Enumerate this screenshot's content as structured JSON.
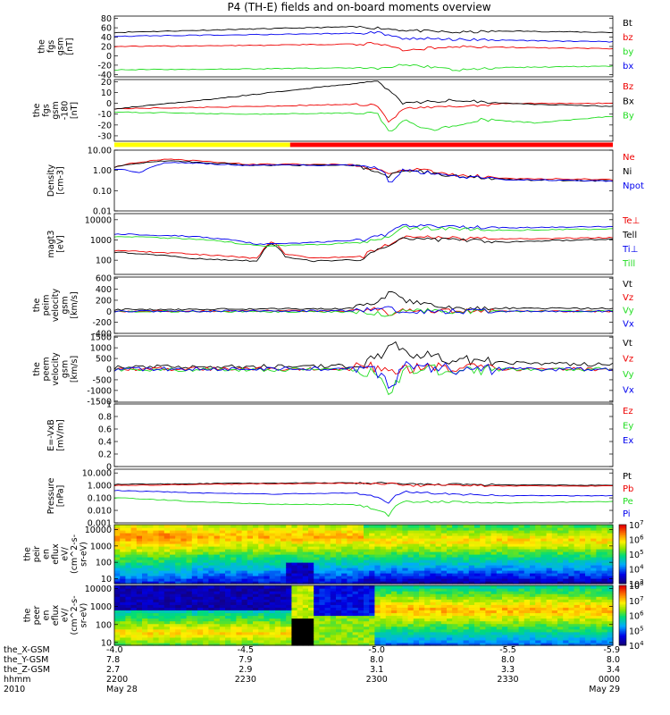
{
  "title": "P4 (TH-E) fields and on-board moments overview",
  "status_bar": {
    "segments": [
      {
        "color": "#ffff00",
        "until_x": -4.67
      },
      {
        "color": "#ff0000",
        "until_x": -5.9
      }
    ]
  },
  "colors": {
    "black": "#000000",
    "red": "#ee0000",
    "green": "#22dd22",
    "blue": "#0000ee"
  },
  "chart_data": [
    {
      "id": "p1",
      "type": "line",
      "ylabel": [
        "the",
        "fgs",
        "gsm",
        "[nT]"
      ],
      "ylim": [
        -45,
        85
      ],
      "yticks": [
        80,
        60,
        40,
        20,
        0,
        -20,
        -40
      ],
      "series": [
        {
          "name": "Bt",
          "color": "#000000",
          "x": [
            -4.0,
            -4.5,
            -4.9,
            -5.0,
            -5.1,
            -5.3,
            -5.5,
            -5.9
          ],
          "y": [
            50,
            57,
            62,
            60,
            55,
            50,
            53,
            50
          ]
        },
        {
          "name": "bz",
          "color": "#ee0000",
          "x": [
            -4.0,
            -4.5,
            -4.9,
            -5.0,
            -5.1,
            -5.3,
            -5.5,
            -5.9
          ],
          "y": [
            20,
            22,
            25,
            26,
            12,
            20,
            18,
            15
          ]
        },
        {
          "name": "by",
          "color": "#22dd22",
          "x": [
            -4.0,
            -4.5,
            -4.9,
            -5.0,
            -5.1,
            -5.3,
            -5.5,
            -5.9
          ],
          "y": [
            -30,
            -28,
            -26,
            -28,
            -18,
            -30,
            -25,
            -22
          ]
        },
        {
          "name": "bx",
          "color": "#0000ee",
          "x": [
            -4.0,
            -4.5,
            -4.9,
            -5.0,
            -5.1,
            -5.3,
            -5.5,
            -5.9
          ],
          "y": [
            42,
            45,
            48,
            50,
            38,
            35,
            33,
            30
          ]
        }
      ]
    },
    {
      "id": "p2",
      "type": "line",
      "ylabel": [
        "the",
        "fgs",
        "gsm",
        "-180",
        "[nT]"
      ],
      "ylim": [
        -35,
        22
      ],
      "yticks": [
        20,
        10,
        0,
        -10,
        -20,
        -30
      ],
      "series": [
        {
          "name": "Bz",
          "color": "#ee0000",
          "x": [
            -4.0,
            -4.5,
            -4.9,
            -5.0,
            -5.05,
            -5.1,
            -5.3,
            -5.5,
            -5.9
          ],
          "y": [
            -5,
            -3,
            -1,
            -1,
            -18,
            -5,
            -3,
            0,
            0
          ]
        },
        {
          "name": "Bx",
          "color": "#000000",
          "x": [
            -4.0,
            -4.3,
            -4.6,
            -4.9,
            -5.0,
            -5.05,
            -5.1,
            -5.3,
            -5.5,
            -5.9
          ],
          "y": [
            -5,
            2,
            10,
            18,
            20,
            12,
            0,
            3,
            0,
            -3
          ]
        },
        {
          "name": "By",
          "color": "#22dd22",
          "x": [
            -4.0,
            -4.5,
            -4.9,
            -5.0,
            -5.05,
            -5.1,
            -5.2,
            -5.4,
            -5.6,
            -5.9
          ],
          "y": [
            -8,
            -10,
            -9,
            -8,
            -28,
            -15,
            -25,
            -15,
            -18,
            -12
          ]
        }
      ]
    },
    {
      "id": "p3",
      "type": "line",
      "log": true,
      "ylabel": [
        "Density",
        "[cm-3]"
      ],
      "ylim": [
        0.01,
        10
      ],
      "yticks": [
        0.01,
        0.1,
        1.0,
        10.0
      ],
      "ytick_labels": [
        "0.01",
        "0.10",
        "1.00",
        "10.00"
      ],
      "series": [
        {
          "name": "Ne",
          "color": "#ee0000",
          "x": [
            -4.0,
            -4.2,
            -4.5,
            -4.9,
            -5.05,
            -5.1,
            -5.3,
            -5.5,
            -5.9
          ],
          "y": [
            1.5,
            3.5,
            2.0,
            2.0,
            0.6,
            1.2,
            0.6,
            0.4,
            0.35
          ]
        },
        {
          "name": "Ni",
          "color": "#000000",
          "x": [
            -4.0,
            -4.2,
            -4.5,
            -4.9,
            -5.05,
            -5.1,
            -5.3,
            -5.5,
            -5.9
          ],
          "y": [
            1.5,
            3.0,
            1.8,
            1.8,
            0.5,
            1.1,
            0.5,
            0.35,
            0.3
          ]
        },
        {
          "name": "Npot",
          "color": "#0000ee",
          "x": [
            -4.0,
            -4.1,
            -4.2,
            -4.5,
            -4.9,
            -5.0,
            -5.05,
            -5.1,
            -5.3,
            -5.5,
            -5.9
          ],
          "y": [
            1.2,
            0.8,
            2.5,
            1.8,
            1.8,
            1.5,
            0.15,
            1.0,
            0.5,
            0.35,
            0.3
          ]
        }
      ]
    },
    {
      "id": "p4",
      "type": "line",
      "log": true,
      "ylabel": [
        "magt3",
        "[eV]"
      ],
      "ylim": [
        20,
        20000
      ],
      "yticks": [
        100,
        1000,
        10000
      ],
      "ytick_labels": [
        "100",
        "1000",
        "10000"
      ],
      "series": [
        {
          "name": "Te⊥",
          "color": "#ee0000",
          "x": [
            -4.0,
            -4.3,
            -4.55,
            -4.6,
            -4.65,
            -4.75,
            -4.95,
            -5.05,
            -5.1,
            -5.3,
            -5.5,
            -5.9
          ],
          "y": [
            300,
            200,
            120,
            800,
            200,
            130,
            150,
            600,
            1500,
            1200,
            1100,
            1300
          ]
        },
        {
          "name": "Tell",
          "color": "#000000",
          "x": [
            -4.0,
            -4.3,
            -4.55,
            -4.6,
            -4.65,
            -4.75,
            -4.95,
            -5.05,
            -5.1,
            -5.3,
            -5.5,
            -5.9
          ],
          "y": [
            250,
            120,
            90,
            700,
            150,
            90,
            110,
            500,
            1100,
            1000,
            800,
            1100
          ]
        },
        {
          "name": "Ti⊥",
          "color": "#0000ee",
          "x": [
            -4.0,
            -4.3,
            -4.55,
            -4.8,
            -4.95,
            -5.05,
            -5.1,
            -5.3,
            -5.5,
            -5.9
          ],
          "y": [
            2000,
            1500,
            600,
            800,
            1000,
            2000,
            5000,
            4500,
            4000,
            4500
          ]
        },
        {
          "name": "Till",
          "color": "#22dd22",
          "x": [
            -4.0,
            -4.3,
            -4.55,
            -4.8,
            -4.95,
            -5.05,
            -5.1,
            -5.3,
            -5.5,
            -5.9
          ],
          "y": [
            1500,
            1100,
            500,
            600,
            800,
            1500,
            4000,
            3500,
            3000,
            3500
          ]
        }
      ]
    },
    {
      "id": "p5",
      "type": "line",
      "ylabel": [
        "the",
        "peim",
        "velocity",
        "gsm",
        "[km/s]"
      ],
      "ylim": [
        -400,
        620
      ],
      "yticks": [
        600,
        400,
        200,
        0,
        -200,
        -400
      ],
      "series": [
        {
          "name": "Vt",
          "color": "#000000",
          "x": [
            -4.0,
            -4.9,
            -5.0,
            -5.05,
            -5.1,
            -5.2,
            -5.3,
            -5.9
          ],
          "y": [
            30,
            50,
            150,
            350,
            200,
            100,
            60,
            50
          ]
        },
        {
          "name": "Vz",
          "color": "#ee0000",
          "x": [
            -4.0,
            -4.9,
            -5.0,
            -5.05,
            -5.1,
            -5.3,
            -5.9
          ],
          "y": [
            0,
            10,
            50,
            -50,
            20,
            0,
            0
          ]
        },
        {
          "name": "Vy",
          "color": "#22dd22",
          "x": [
            -4.0,
            -4.9,
            -5.0,
            -5.05,
            -5.1,
            -5.3,
            -5.9
          ],
          "y": [
            0,
            -10,
            -40,
            -80,
            20,
            0,
            0
          ]
        },
        {
          "name": "Vx",
          "color": "#0000ee",
          "x": [
            -4.0,
            -4.9,
            -5.0,
            -5.05,
            -5.1,
            -5.3,
            -5.9
          ],
          "y": [
            0,
            10,
            40,
            60,
            -20,
            0,
            0
          ]
        }
      ]
    },
    {
      "id": "p6",
      "type": "line",
      "ylabel": [
        "the",
        "peem",
        "velocity",
        "gsm",
        "[km/s]"
      ],
      "ylim": [
        -1550,
        1550
      ],
      "yticks": [
        1500,
        1000,
        500,
        0,
        -500,
        -1000,
        -1500
      ],
      "series": [
        {
          "name": "Vt",
          "color": "#000000",
          "x": [
            -4.0,
            -4.9,
            -5.0,
            -5.05,
            -5.1,
            -5.2,
            -5.3,
            -5.5,
            -5.9
          ],
          "y": [
            100,
            150,
            400,
            1300,
            800,
            600,
            400,
            300,
            200
          ]
        },
        {
          "name": "Vz",
          "color": "#ee0000",
          "x": [
            -4.0,
            -4.9,
            -5.0,
            -5.05,
            -5.1,
            -5.3,
            -5.9
          ],
          "y": [
            0,
            20,
            100,
            -200,
            50,
            0,
            0
          ]
        },
        {
          "name": "Vy",
          "color": "#22dd22",
          "x": [
            -4.0,
            -4.9,
            -5.0,
            -5.05,
            -5.1,
            -5.3,
            -5.9
          ],
          "y": [
            0,
            -50,
            -200,
            -1000,
            -100,
            -50,
            0
          ]
        },
        {
          "name": "Vx",
          "color": "#0000ee",
          "x": [
            -4.0,
            -4.9,
            -5.0,
            -5.05,
            -5.1,
            -5.3,
            -5.9
          ],
          "y": [
            0,
            20,
            -100,
            -900,
            100,
            0,
            0
          ]
        }
      ]
    },
    {
      "id": "p7",
      "type": "line",
      "ylabel": [
        "E=-VxB",
        "[mV/m]"
      ],
      "ylim": [
        0,
        1.0
      ],
      "yticks": [
        0.0,
        0.2,
        0.4,
        0.6,
        0.8,
        1.0
      ],
      "series": [
        {
          "name": "Ez",
          "color": "#ee0000",
          "x": [],
          "y": []
        },
        {
          "name": "Ey",
          "color": "#22dd22",
          "x": [],
          "y": []
        },
        {
          "name": "Ex",
          "color": "#0000ee",
          "x": [],
          "y": []
        }
      ]
    },
    {
      "id": "p8",
      "type": "line",
      "log": true,
      "ylabel": [
        "Pressure",
        "[nPa]"
      ],
      "ylim": [
        0.001,
        20
      ],
      "yticks": [
        0.001,
        0.01,
        0.1,
        1,
        10
      ],
      "ytick_labels": [
        "0.001",
        "0.010",
        "0.100",
        "1.000",
        "10.000"
      ],
      "series": [
        {
          "name": "Pt",
          "color": "#000000",
          "x": [
            -4.0,
            -4.5,
            -4.9,
            -5.05,
            -5.1,
            -5.3,
            -5.5,
            -5.9
          ],
          "y": [
            1.2,
            1.5,
            1.6,
            1.5,
            1.2,
            1.2,
            1.1,
            1.0
          ]
        },
        {
          "name": "Pb",
          "color": "#ee0000",
          "x": [
            -4.0,
            -4.5,
            -4.9,
            -5.05,
            -5.1,
            -5.3,
            -5.5,
            -5.9
          ],
          "y": [
            1.0,
            1.3,
            1.5,
            1.4,
            1.0,
            1.0,
            0.9,
            0.9
          ]
        },
        {
          "name": "Pe",
          "color": "#22dd22",
          "x": [
            -4.0,
            -4.3,
            -4.6,
            -4.9,
            -5.05,
            -5.1,
            -5.3,
            -5.5,
            -5.9
          ],
          "y": [
            0.1,
            0.05,
            0.03,
            0.03,
            0.003,
            0.05,
            0.05,
            0.04,
            0.05
          ]
        },
        {
          "name": "Pi",
          "color": "#0000ee",
          "x": [
            -4.0,
            -4.3,
            -4.6,
            -4.9,
            -5.05,
            -5.1,
            -5.3,
            -5.5,
            -5.9
          ],
          "y": [
            0.4,
            0.25,
            0.2,
            0.25,
            0.03,
            0.3,
            0.2,
            0.15,
            0.15
          ]
        }
      ]
    },
    {
      "id": "p9",
      "type": "heatmap",
      "log": true,
      "ylabel": [
        "the",
        "peir",
        "en",
        "eflux",
        "eV/",
        "(cm^2-s-",
        "sr-eV)"
      ],
      "ylim": [
        5,
        20000
      ],
      "yticks": [
        10,
        100,
        1000,
        10000
      ],
      "ytick_labels": [
        "10",
        "100",
        "1000",
        "10000"
      ],
      "colorbar": {
        "min_exp": 3,
        "max_exp": 7
      }
    },
    {
      "id": "p10",
      "type": "heatmap",
      "log": true,
      "ylabel": [
        "the",
        "peer",
        "en",
        "eflux",
        "eV/",
        "(cm^2-s-",
        "sr-eV)"
      ],
      "ylim": [
        7,
        15000
      ],
      "yticks": [
        10,
        100,
        1000,
        10000
      ],
      "ytick_labels": [
        "10",
        "100",
        "1000",
        "10000"
      ],
      "colorbar": {
        "min_exp": 4,
        "max_exp": 8
      }
    }
  ],
  "x_axis": {
    "xlim": [
      -4.0,
      -5.9
    ],
    "ticks": [
      {
        "x": -4.0,
        "vals": [
          "-4.0",
          "7.8",
          "2.7",
          "2200",
          "May 28"
        ]
      },
      {
        "x": -4.5,
        "vals": [
          "-4.5",
          "7.9",
          "2.9",
          "2230",
          ""
        ]
      },
      {
        "x": -5.0,
        "vals": [
          "-5.0",
          "8.0",
          "3.1",
          "2300",
          ""
        ]
      },
      {
        "x": -5.5,
        "vals": [
          "-5.5",
          "8.0",
          "3.3",
          "2330",
          ""
        ]
      },
      {
        "x": -5.9,
        "vals": [
          "-5.9",
          "8.0",
          "3.4",
          "0000",
          "May 29"
        ]
      }
    ],
    "row_labels": [
      "the_X-GSM",
      "the_Y-GSM",
      "the_Z-GSM",
      "hhmm",
      "2010"
    ]
  }
}
